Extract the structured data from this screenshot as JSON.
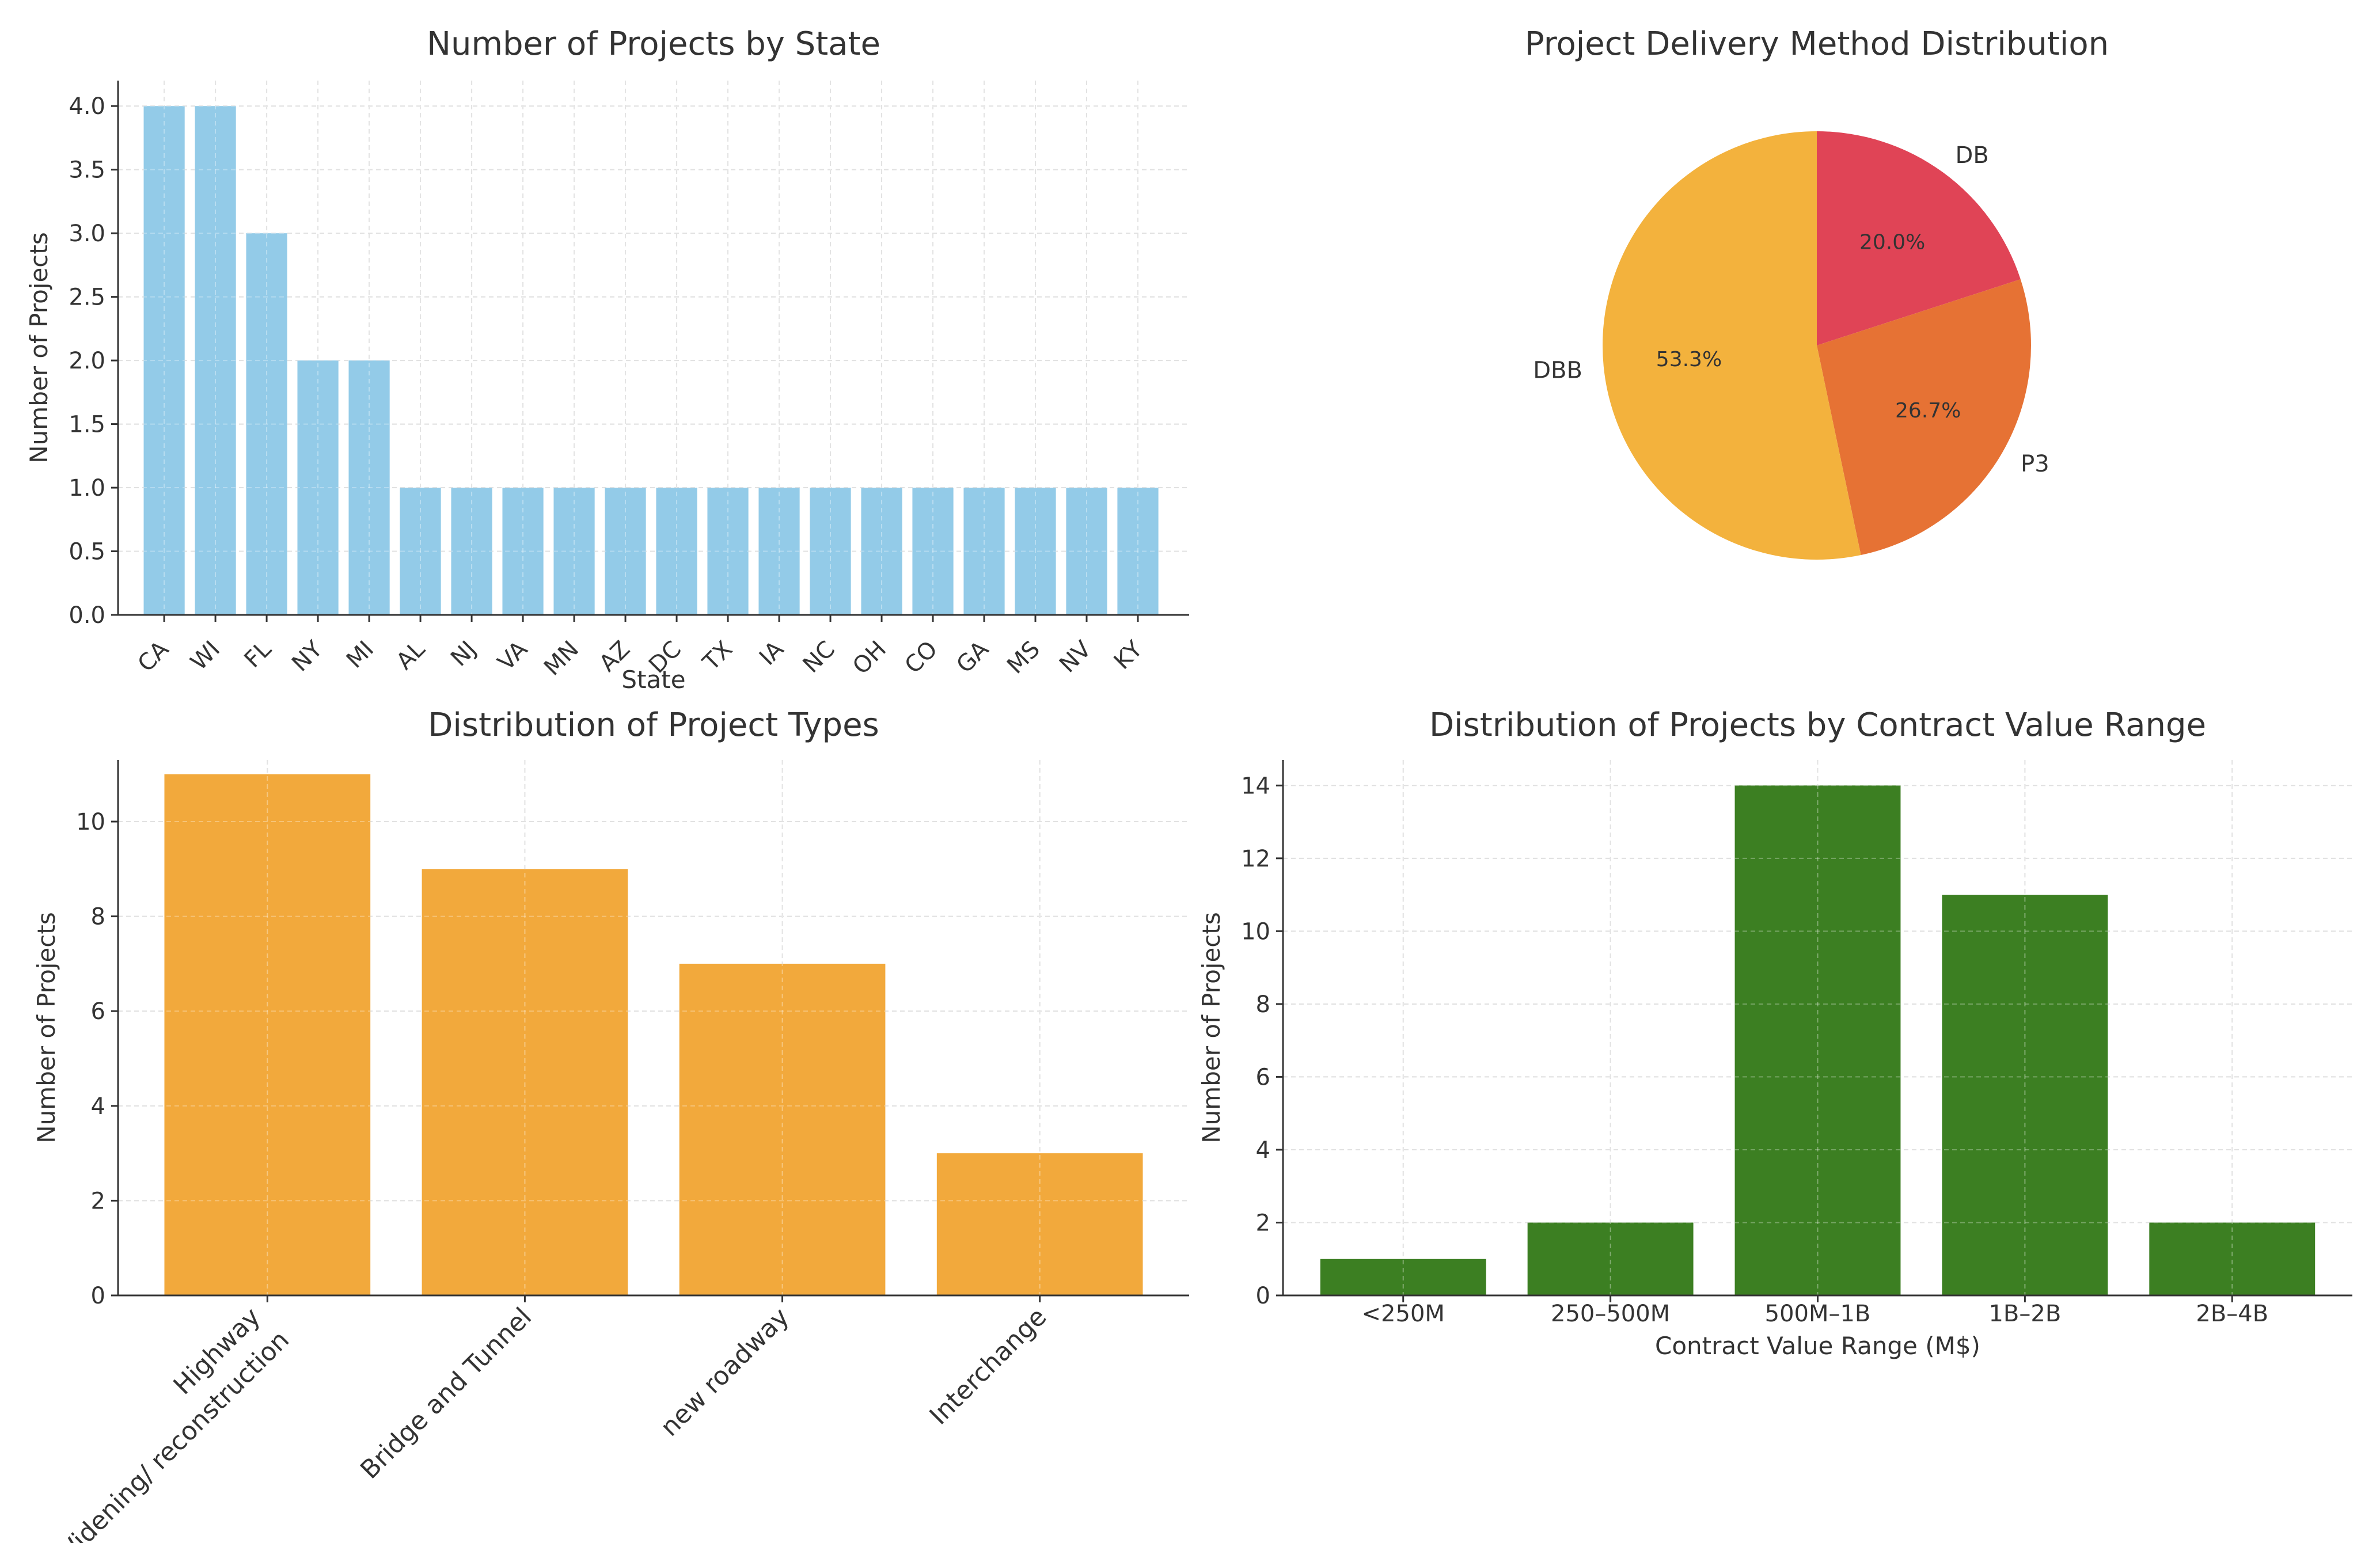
{
  "chart_data": [
    {
      "type": "bar",
      "title": "Number of Projects by State",
      "xlabel": "State",
      "ylabel": "Number of Projects",
      "categories": [
        "CA",
        "WI",
        "FL",
        "NY",
        "MI",
        "AL",
        "NJ",
        "VA",
        "MN",
        "AZ",
        "DC",
        "TX",
        "IA",
        "NC",
        "OH",
        "CO",
        "GA",
        "MS",
        "NV",
        "KY"
      ],
      "values": [
        4,
        4,
        3,
        2,
        2,
        1,
        1,
        1,
        1,
        1,
        1,
        1,
        1,
        1,
        1,
        1,
        1,
        1,
        1,
        1
      ],
      "yticks": [
        "0.0",
        "0.5",
        "1.0",
        "1.5",
        "2.0",
        "2.5",
        "3.0",
        "3.5",
        "4.0"
      ],
      "ylim": [
        0,
        4.2
      ],
      "grid": true,
      "color": "#93cbe8"
    },
    {
      "type": "pie",
      "title": "Project Delivery Method Distribution",
      "labels": [
        "DB",
        "P3",
        "DBB"
      ],
      "values": [
        20.0,
        26.7,
        53.3
      ],
      "pct_labels": [
        "20.0%",
        "26.7%",
        "53.3%"
      ],
      "colors": [
        "#e04456",
        "#e67234",
        "#f3b23d"
      ],
      "start_angle_deg": 90,
      "direction": "clockwise"
    },
    {
      "type": "bar",
      "title": "Distribution of Project Types",
      "xlabel": "",
      "ylabel": "Number of Projects",
      "categories": [
        [
          "Highway",
          "Widening/ reconstruction"
        ],
        [
          "Bridge and Tunnel"
        ],
        [
          "new roadway"
        ],
        [
          "Interchange"
        ]
      ],
      "values": [
        11,
        9,
        7,
        3
      ],
      "yticks": [
        "0",
        "2",
        "4",
        "6",
        "8",
        "10"
      ],
      "ylim": [
        0,
        11.3
      ],
      "grid": true,
      "color": "#f2a93c"
    },
    {
      "type": "bar",
      "title": "Distribution of Projects by Contract Value Range",
      "xlabel": "Contract Value Range (M$)",
      "ylabel": "Number of Projects",
      "categories": [
        "<250M",
        "250–500M",
        "500M–1B",
        "1B–2B",
        "2B–4B"
      ],
      "values": [
        1,
        2,
        14,
        11,
        2
      ],
      "yticks": [
        "0",
        "2",
        "4",
        "6",
        "8",
        "10",
        "12",
        "14"
      ],
      "ylim": [
        0,
        14.7
      ],
      "grid": true,
      "color": "#3c7f22"
    }
  ]
}
